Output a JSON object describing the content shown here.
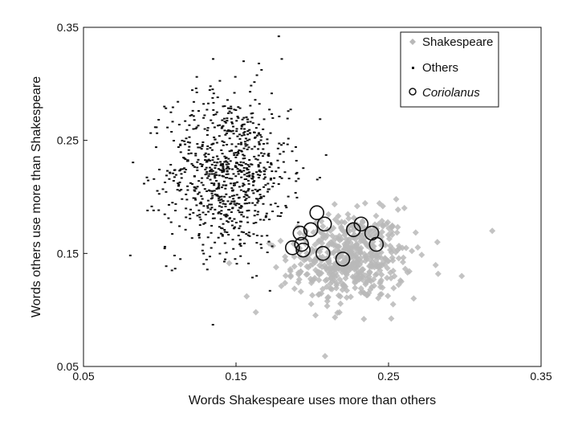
{
  "chart_data": {
    "type": "scatter",
    "xlabel": "Words Shakespeare uses more than others",
    "ylabel": "Words others use more than Shakespeare",
    "xlim": [
      0.05,
      0.35
    ],
    "ylim": [
      0.05,
      0.35
    ],
    "xticks": [
      "0.05",
      "0.15",
      "0.25",
      "0.35"
    ],
    "yticks": [
      "0.05",
      "0.15",
      "0.25",
      "0.35"
    ],
    "legend_position": "top-right",
    "legend": [
      {
        "name": "Shakespeare",
        "marker": "diamond",
        "color": "#b8b8b8"
      },
      {
        "name": "Others",
        "marker": "dash",
        "color": "#111111"
      },
      {
        "name": "Coriolanus",
        "marker": "circle",
        "color": "#111111",
        "italic": true
      }
    ],
    "series": [
      {
        "name": "Shakespeare",
        "marker": "diamond",
        "distribution": {
          "center": [
            0.225,
            0.145
          ],
          "spread": [
            0.022,
            0.022
          ],
          "count": 520,
          "rotation": 0.5
        },
        "extra_points": [
          [
            0.318,
            0.17
          ],
          [
            0.298,
            0.13
          ],
          [
            0.255,
            0.198
          ],
          [
            0.163,
            0.098
          ],
          [
            0.157,
            0.112
          ],
          [
            0.253,
            0.105
          ],
          [
            0.282,
            0.16
          ]
        ]
      },
      {
        "name": "Others",
        "marker": "dash",
        "distribution": {
          "center": [
            0.145,
            0.222
          ],
          "spread": [
            0.02,
            0.035
          ],
          "count": 850,
          "rotation": 0
        },
        "extra_points": [
          [
            0.155,
            0.32
          ],
          [
            0.135,
            0.322
          ],
          [
            0.165,
            0.318
          ],
          [
            0.092,
            0.188
          ],
          [
            0.108,
            0.135
          ],
          [
            0.18,
            0.322
          ]
        ]
      },
      {
        "name": "Coriolanus",
        "marker": "circle",
        "points": [
          [
            0.187,
            0.155
          ],
          [
            0.192,
            0.168
          ],
          [
            0.193,
            0.158
          ],
          [
            0.194,
            0.153
          ],
          [
            0.199,
            0.171
          ],
          [
            0.203,
            0.186
          ],
          [
            0.208,
            0.176
          ],
          [
            0.207,
            0.15
          ],
          [
            0.22,
            0.145
          ],
          [
            0.227,
            0.171
          ],
          [
            0.232,
            0.176
          ],
          [
            0.239,
            0.168
          ],
          [
            0.242,
            0.158
          ]
        ]
      }
    ]
  }
}
